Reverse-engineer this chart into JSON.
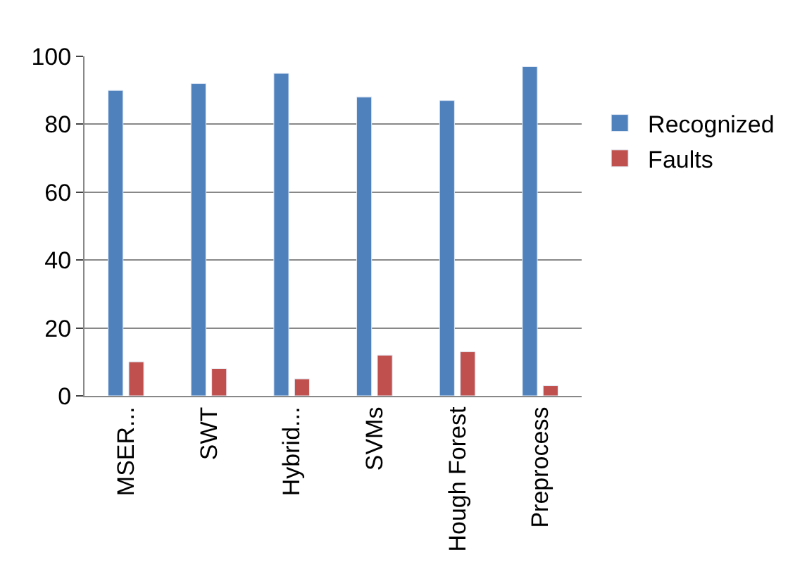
{
  "chart_data": {
    "type": "bar",
    "categories": [
      "MSER...",
      "SWT",
      "Hybrid...",
      "SVMs",
      "Hough Forest",
      "Preprocess"
    ],
    "series": [
      {
        "name": "Recognized",
        "color": "#4f81bd",
        "values": [
          90,
          92,
          95,
          88,
          87,
          97
        ]
      },
      {
        "name": "Faults",
        "color": "#c0504d",
        "values": [
          10,
          8,
          5,
          12,
          13,
          3
        ]
      }
    ],
    "ylim": [
      0,
      100
    ],
    "yticks": [
      0,
      20,
      40,
      60,
      80,
      100
    ],
    "grid": "y",
    "legend": "right"
  }
}
